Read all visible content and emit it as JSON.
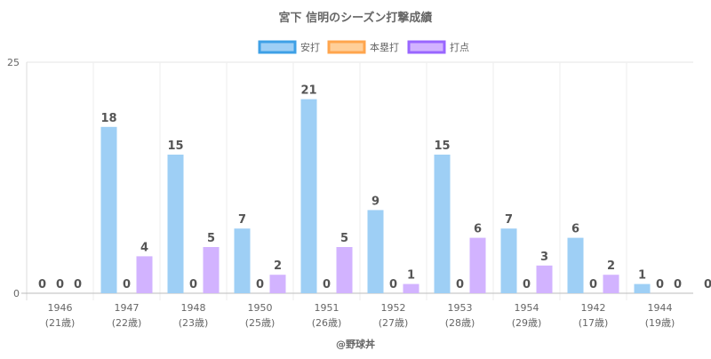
{
  "chart_data": {
    "type": "bar",
    "title": "宮下 信明のシーズン打撃成績",
    "legend_position": "top",
    "grid": true,
    "ylim": [
      0,
      25
    ],
    "y_ticks": [
      "0",
      "25"
    ],
    "categories": [
      {
        "year": "1946",
        "age": "(21歳)"
      },
      {
        "year": "1947",
        "age": "(22歳)"
      },
      {
        "year": "1948",
        "age": "(23歳)"
      },
      {
        "year": "1950",
        "age": "(25歳)"
      },
      {
        "year": "1951",
        "age": "(26歳)"
      },
      {
        "year": "1952",
        "age": "(27歳)"
      },
      {
        "year": "1953",
        "age": "(28歳)"
      },
      {
        "year": "1954",
        "age": "(29歳)"
      },
      {
        "year": "1942",
        "age": "(17歳)"
      },
      {
        "year": "1944",
        "age": "(19歳)"
      }
    ],
    "series": [
      {
        "name": "安打",
        "fill": "#9ecff5",
        "border": "#3ea0e6",
        "values": [
          0,
          18,
          15,
          7,
          21,
          9,
          15,
          7,
          6,
          1
        ]
      },
      {
        "name": "本塁打",
        "fill": "#ffcf99",
        "border": "#ffa54d",
        "values": [
          0,
          0,
          0,
          0,
          0,
          0,
          0,
          0,
          0,
          0
        ]
      },
      {
        "name": "打点",
        "fill": "#d2b3ff",
        "border": "#9966ff",
        "values": [
          0,
          4,
          5,
          2,
          5,
          1,
          6,
          3,
          2,
          0
        ]
      }
    ],
    "extra_label": "0"
  },
  "footer": {
    "credit": "@野球丼"
  }
}
